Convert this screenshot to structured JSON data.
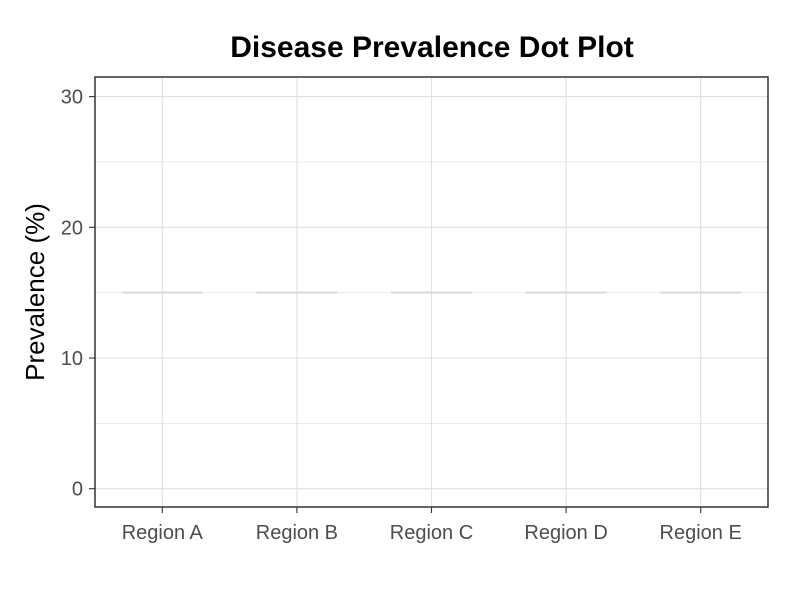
{
  "chart_data": {
    "type": "scatter",
    "title": "Disease Prevalence Dot Plot",
    "xlabel": "",
    "ylabel": "Prevalence (%)",
    "categories": [
      "Region A",
      "Region B",
      "Region C",
      "Region D",
      "Region E"
    ],
    "values": [
      15,
      15,
      15,
      15,
      15
    ],
    "y_ticks": [
      "0",
      "10",
      "20",
      "30"
    ],
    "ylim": [
      -1.4,
      31.5
    ],
    "grid": true,
    "legend": "none",
    "colors": {
      "reference_line": "#d9d9d9",
      "grid": "#e0e0e0",
      "panel_border": "#333333"
    }
  }
}
